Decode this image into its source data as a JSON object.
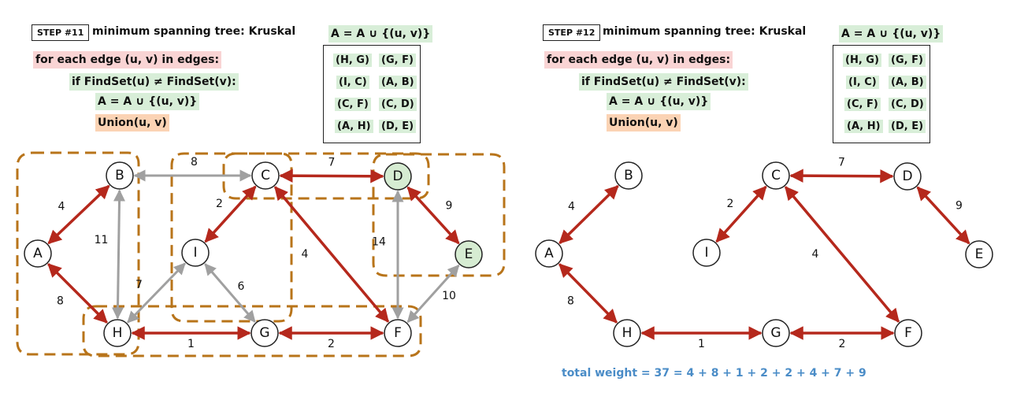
{
  "colors": {
    "mst_edge": "#b5281c",
    "other_edge": "#a0a0a0",
    "set_outline": "#b8741a",
    "highlight_pink": "#f9d4d4",
    "highlight_green": "#d8eed8",
    "highlight_orange": "#fbd3b4",
    "total_text": "#4a8cc7"
  },
  "steps": [
    {
      "step_label": "STEP #11",
      "title": "minimum spanning tree: Kruskal",
      "set_expr": "A = A ∪ {(u, v)}",
      "code": [
        "for each edge (u, v) in edges:",
        "if FindSet(u) ≠ FindSet(v):",
        "A = A ∪ {(u, v)}",
        "Union(u, v)"
      ],
      "edge_list": [
        "(H, G)",
        "(G, F)",
        "(I, C)",
        "(A, B)",
        "(C, F)",
        "(C, D)",
        "(A, H)",
        "(D, E)"
      ]
    },
    {
      "step_label": "STEP #12",
      "title": "minimum spanning tree: Kruskal",
      "set_expr": "A = A ∪ {(u, v)}",
      "code": [
        "for each edge (u, v) in edges:",
        "if FindSet(u) ≠ FindSet(v):",
        "A = A ∪ {(u, v)}",
        "Union(u, v)"
      ],
      "edge_list": [
        "(H, G)",
        "(G, F)",
        "(I, C)",
        "(A, B)",
        "(C, F)",
        "(C, D)",
        "(A, H)",
        "(D, E)"
      ]
    }
  ],
  "graph11": {
    "nodes": [
      "A",
      "B",
      "C",
      "D",
      "E",
      "F",
      "G",
      "H",
      "I"
    ],
    "highlighted_nodes": [
      "D",
      "E"
    ],
    "edges": [
      {
        "from": "A",
        "to": "B",
        "weight": "4",
        "mst": true
      },
      {
        "from": "A",
        "to": "H",
        "weight": "8",
        "mst": true
      },
      {
        "from": "B",
        "to": "C",
        "weight": "8",
        "mst": false
      },
      {
        "from": "B",
        "to": "H",
        "weight": "11",
        "mst": false
      },
      {
        "from": "C",
        "to": "D",
        "weight": "7",
        "mst": true
      },
      {
        "from": "C",
        "to": "I",
        "weight": "2",
        "mst": true
      },
      {
        "from": "C",
        "to": "F",
        "weight": "4",
        "mst": true
      },
      {
        "from": "D",
        "to": "E",
        "weight": "9",
        "mst": true
      },
      {
        "from": "D",
        "to": "F",
        "weight": "14",
        "mst": false
      },
      {
        "from": "E",
        "to": "F",
        "weight": "10",
        "mst": false
      },
      {
        "from": "I",
        "to": "H",
        "weight": "7",
        "mst": false
      },
      {
        "from": "I",
        "to": "G",
        "weight": "6",
        "mst": false
      },
      {
        "from": "H",
        "to": "G",
        "weight": "1",
        "mst": true
      },
      {
        "from": "G",
        "to": "F",
        "weight": "2",
        "mst": true
      }
    ]
  },
  "graph12": {
    "nodes": [
      "A",
      "B",
      "C",
      "D",
      "E",
      "F",
      "G",
      "H",
      "I"
    ],
    "edges": [
      {
        "from": "A",
        "to": "B",
        "weight": "4"
      },
      {
        "from": "A",
        "to": "H",
        "weight": "8"
      },
      {
        "from": "C",
        "to": "D",
        "weight": "7"
      },
      {
        "from": "C",
        "to": "I",
        "weight": "2"
      },
      {
        "from": "C",
        "to": "F",
        "weight": "4"
      },
      {
        "from": "D",
        "to": "E",
        "weight": "9"
      },
      {
        "from": "H",
        "to": "G",
        "weight": "1"
      },
      {
        "from": "G",
        "to": "F",
        "weight": "2"
      }
    ]
  },
  "total_weight": "total weight = 37 = 4 + 8 + 1 + 2 + 2 + 4 + 7 + 9"
}
